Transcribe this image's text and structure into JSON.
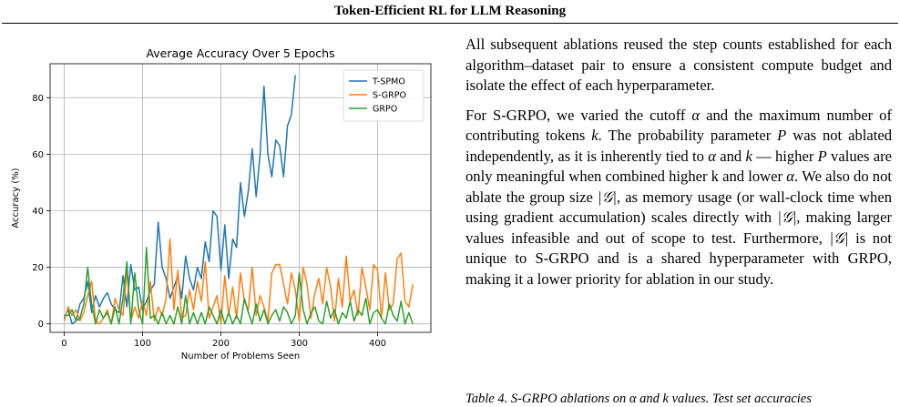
{
  "header": {
    "title": "Token-Efficient RL for LLM Reasoning"
  },
  "body": {
    "p1": "All subsequent ablations reused the step counts established for each algorithm–dataset pair to ensure a consistent compute budget and isolate the effect of each hyperparameter.",
    "p2_parts": [
      "For S-GRPO, we varied the cutoff ",
      "α",
      " and the maximum number of contributing tokens ",
      "k",
      ". The probability parameter ",
      "P",
      " was not ablated independently, as it is inherently tied to ",
      "α",
      " and ",
      "k",
      " — higher ",
      "P",
      " values are only meaningful when combined higher k and lower ",
      "α",
      ". We also do not ablate the group size ",
      "|𝒢|",
      ", as memory usage (or wall-clock time when using gradient accumulation) scales directly with ",
      "|𝒢|",
      ", making larger values infeasible and out of scope to test. Furthermore, ",
      "|𝒢|",
      " is not unique to S-GRPO and is a shared hyperparameter with GRPO, making it a lower priority for ablation in our study."
    ],
    "caption": "Table 4. S-GRPO ablations on α and k values. Test set accuracies"
  },
  "chart_data": {
    "type": "line",
    "title": "Average Accuracy Over 5 Epochs",
    "xlabel": "Number of Problems Seen",
    "ylabel": "Accuracy (%)",
    "xlim": [
      -18,
      468
    ],
    "ylim": [
      -3,
      92
    ],
    "xticks": [
      0,
      100,
      200,
      300,
      400
    ],
    "yticks": [
      0,
      20,
      40,
      60,
      80
    ],
    "grid": true,
    "legend_position": "top-right",
    "series": [
      {
        "name": "T-SPMO",
        "color": "#1f77b4",
        "x": [
          0,
          5,
          10,
          15,
          20,
          25,
          30,
          35,
          40,
          45,
          50,
          55,
          60,
          65,
          70,
          75,
          80,
          85,
          90,
          95,
          100,
          105,
          110,
          115,
          120,
          125,
          130,
          135,
          140,
          145,
          150,
          155,
          160,
          165,
          170,
          175,
          180,
          185,
          190,
          195,
          200,
          205,
          210,
          215,
          220,
          225,
          230,
          235,
          240,
          245,
          250,
          255,
          260,
          265,
          270,
          275,
          280,
          285,
          290,
          295
        ],
        "y": [
          2,
          5,
          0,
          1,
          7,
          9,
          15,
          4,
          10,
          6,
          9,
          11,
          7,
          5,
          4,
          17,
          6,
          21,
          12,
          13,
          5,
          8,
          12,
          14,
          36,
          20,
          16,
          9,
          13,
          17,
          9,
          24,
          16,
          12,
          20,
          16,
          29,
          22,
          40,
          38,
          19,
          35,
          16,
          30,
          27,
          50,
          38,
          47,
          62,
          45,
          60,
          84,
          60,
          52,
          65,
          63,
          52,
          70,
          74,
          88
        ]
      },
      {
        "name": "S-GRPO",
        "color": "#ff7f0e",
        "x": [
          0,
          5,
          10,
          15,
          20,
          25,
          30,
          35,
          40,
          45,
          50,
          55,
          60,
          65,
          70,
          75,
          80,
          85,
          90,
          95,
          100,
          105,
          110,
          115,
          120,
          125,
          130,
          135,
          140,
          145,
          150,
          155,
          160,
          165,
          170,
          175,
          180,
          185,
          190,
          195,
          200,
          205,
          210,
          215,
          220,
          225,
          230,
          235,
          240,
          245,
          250,
          255,
          260,
          265,
          270,
          275,
          280,
          285,
          290,
          295,
          300,
          305,
          310,
          315,
          320,
          325,
          330,
          335,
          340,
          345,
          350,
          355,
          360,
          365,
          370,
          375,
          380,
          385,
          390,
          395,
          400,
          405,
          410,
          415,
          420,
          425,
          430,
          435,
          440,
          445
        ],
        "y": [
          1,
          6,
          3,
          5,
          1,
          4,
          10,
          15,
          1,
          0,
          2,
          5,
          0,
          9,
          5,
          3,
          19,
          1,
          6,
          2,
          8,
          3,
          15,
          1,
          6,
          3,
          9,
          30,
          5,
          19,
          2,
          3,
          12,
          5,
          15,
          8,
          22,
          2,
          6,
          10,
          0,
          17,
          3,
          13,
          2,
          18,
          8,
          5,
          20,
          3,
          10,
          6,
          1,
          18,
          21,
          21,
          14,
          7,
          18,
          12,
          1,
          20,
          14,
          2,
          11,
          16,
          7,
          20,
          13,
          1,
          16,
          6,
          24,
          8,
          12,
          3,
          20,
          13,
          5,
          21,
          19,
          2,
          18,
          5,
          7,
          23,
          25,
          8,
          6,
          14
        ]
      },
      {
        "name": "GRPO",
        "color": "#2ca02c",
        "x": [
          0,
          5,
          10,
          15,
          20,
          25,
          30,
          35,
          40,
          45,
          50,
          55,
          60,
          65,
          70,
          75,
          80,
          85,
          90,
          95,
          100,
          105,
          110,
          115,
          120,
          125,
          130,
          135,
          140,
          145,
          150,
          155,
          160,
          165,
          170,
          175,
          180,
          185,
          190,
          195,
          200,
          205,
          210,
          215,
          220,
          225,
          230,
          235,
          240,
          245,
          250,
          255,
          260,
          265,
          270,
          275,
          280,
          285,
          290,
          295,
          300,
          305,
          310,
          315,
          320,
          325,
          330,
          335,
          340,
          345,
          350,
          355,
          360,
          365,
          370,
          375,
          380,
          385,
          390,
          395,
          400,
          405,
          410,
          415,
          420,
          425,
          430,
          435,
          440,
          445
        ],
        "y": [
          3,
          3,
          5,
          1,
          2,
          7,
          20,
          7,
          0,
          5,
          2,
          4,
          0,
          6,
          0,
          9,
          22,
          0,
          18,
          5,
          0,
          27,
          2,
          3,
          0,
          4,
          0,
          3,
          0,
          6,
          0,
          10,
          0,
          4,
          0,
          4,
          0,
          6,
          3,
          0,
          5,
          0,
          4,
          0,
          3,
          0,
          9,
          4,
          0,
          7,
          1,
          5,
          0,
          3,
          5,
          1,
          6,
          4,
          0,
          3,
          18,
          5,
          0,
          4,
          6,
          1,
          0,
          8,
          2,
          5,
          0,
          4,
          2,
          8,
          1,
          5,
          3,
          9,
          0,
          4,
          5,
          2,
          0,
          7,
          3,
          1,
          8,
          0,
          4,
          0
        ]
      }
    ]
  }
}
